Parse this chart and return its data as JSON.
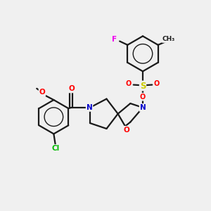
{
  "bg_color": "#f0f0f0",
  "bond_color": "#1a1a1a",
  "atom_colors": {
    "O": "#ff0000",
    "N": "#0000cc",
    "S": "#cccc00",
    "Cl": "#00bb00",
    "F": "#ee00ee",
    "C": "#1a1a1a"
  },
  "bond_lw": 1.6,
  "font_size": 7.5
}
